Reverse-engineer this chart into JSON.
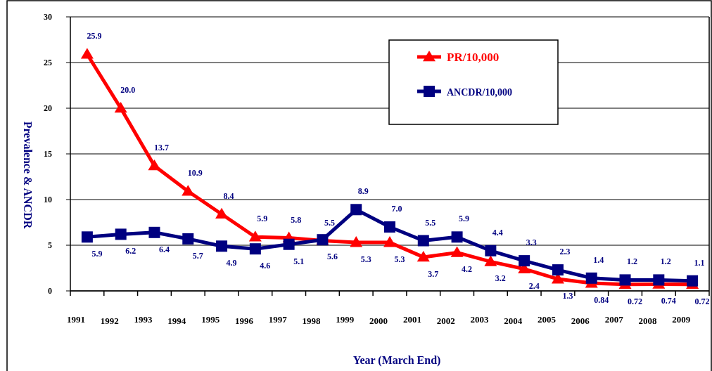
{
  "chart_data": {
    "type": "line",
    "xlabel": "Year (March End)",
    "ylabel": "Prevalence & ANCDR",
    "categories": [
      "1991",
      "1992",
      "1993",
      "1994",
      "1995",
      "1996",
      "1997",
      "1998",
      "1999",
      "2000",
      "2001",
      "2002",
      "2003",
      "2004",
      "2005",
      "2006",
      "2007",
      "2008",
      "2009"
    ],
    "ylim": [
      0,
      30
    ],
    "yticks": [
      0,
      5,
      10,
      15,
      20,
      25,
      30
    ],
    "grid": "y",
    "legend": "top",
    "line_style": "solid",
    "series": [
      {
        "name": "PR/10,000",
        "color": "#ff0000",
        "marker": "triangle",
        "values": [
          25.9,
          20.0,
          13.7,
          10.9,
          8.4,
          5.9,
          5.8,
          5.5,
          5.3,
          5.3,
          3.7,
          4.2,
          3.2,
          2.4,
          1.3,
          0.84,
          0.72,
          0.74,
          0.72
        ],
        "value_labels": [
          "25.9",
          "20.0",
          "13.7",
          "10.9",
          "8.4",
          "5.9",
          "5.8",
          "5.5",
          "5.3",
          "5.3",
          "3.7",
          "4.2",
          "3.2",
          "2.4",
          "1.3",
          "0.84",
          "0.72",
          "0.74",
          "0.72"
        ]
      },
      {
        "name": "ANCDR/10,000",
        "color": "#000080",
        "marker": "square",
        "values": [
          5.9,
          6.2,
          6.4,
          5.7,
          4.9,
          4.6,
          5.1,
          5.6,
          8.9,
          7.0,
          5.5,
          5.9,
          4.4,
          3.3,
          2.3,
          1.4,
          1.2,
          1.2,
          1.1
        ],
        "value_labels": [
          "5.9",
          "6.2",
          "6.4",
          "5.7",
          "4.9",
          "4.6",
          "5.1",
          "5.6",
          "8.9",
          "7.0",
          "5.5",
          "5.9",
          "4.4",
          "3.3",
          "2.3",
          "1.4",
          "1.2",
          "1.2",
          "1.1"
        ]
      }
    ]
  }
}
